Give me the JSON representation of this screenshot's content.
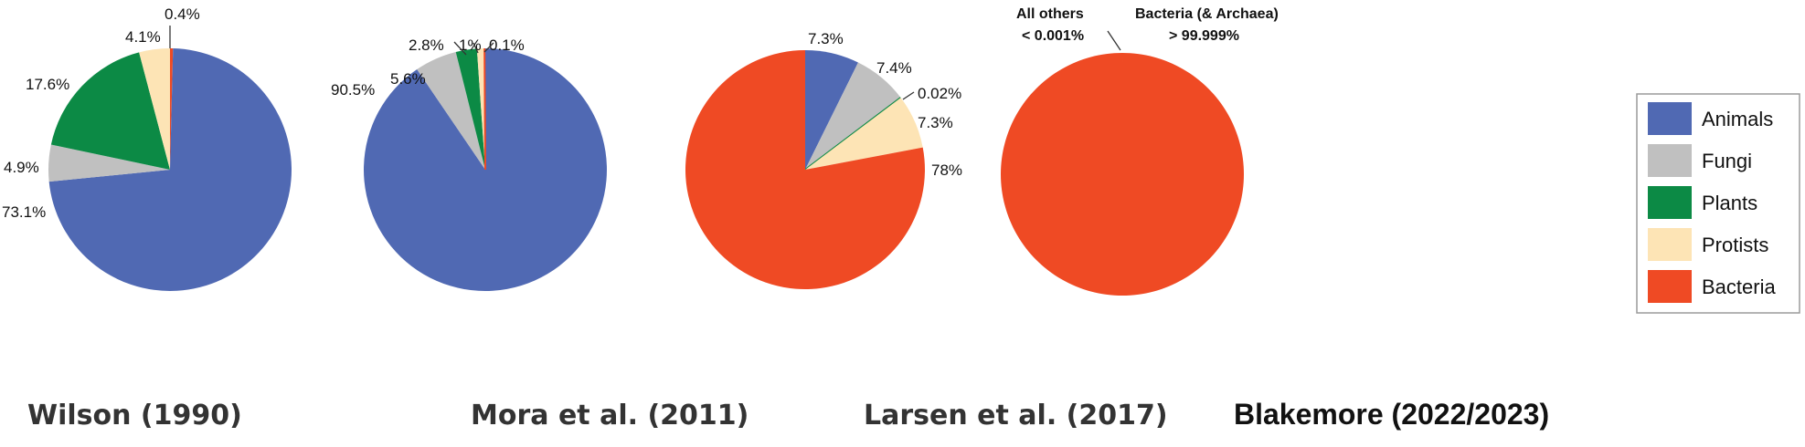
{
  "colors": {
    "Animals": "#5069b3",
    "Fungi": "#c0c0c0",
    "Plants": "#0c8a45",
    "Protists": "#fde4b5",
    "Bacteria": "#ef4a24"
  },
  "legend": [
    "Animals",
    "Fungi",
    "Plants",
    "Protists",
    "Bacteria"
  ],
  "chart_data": [
    {
      "type": "pie",
      "title": "Wilson (1990)",
      "slices": [
        {
          "category": "Animals",
          "value": 73.1,
          "label": "73.1%"
        },
        {
          "category": "Fungi",
          "value": 4.9,
          "label": "4.9%"
        },
        {
          "category": "Plants",
          "value": 17.6,
          "label": "17.6%"
        },
        {
          "category": "Protists",
          "value": 4.1,
          "label": "4.1%"
        },
        {
          "category": "Bacteria",
          "value": 0.4,
          "label": "0.4%"
        }
      ]
    },
    {
      "type": "pie",
      "title": "Mora et al. (2011)",
      "slices": [
        {
          "category": "Animals",
          "value": 90.5,
          "label": "90.5%"
        },
        {
          "category": "Fungi",
          "value": 5.6,
          "label": "5.6%"
        },
        {
          "category": "Plants",
          "value": 2.8,
          "label": "2.8%"
        },
        {
          "category": "Protists",
          "value": 1,
          "label": "1%"
        },
        {
          "category": "Bacteria",
          "value": 0.1,
          "label": "0.1%"
        }
      ]
    },
    {
      "type": "pie",
      "title": "Larsen et al. (2017)",
      "slices": [
        {
          "category": "Animals",
          "value": 7.3,
          "label": "7.3%"
        },
        {
          "category": "Fungi",
          "value": 7.4,
          "label": "7.4%"
        },
        {
          "category": "Plants",
          "value": 0.02,
          "label": "0.02%"
        },
        {
          "category": "Protists",
          "value": 7.3,
          "label": "7.3%"
        },
        {
          "category": "Bacteria",
          "value": 78,
          "label": "78%"
        }
      ]
    },
    {
      "type": "pie",
      "title": "Blakemore (2022/2023)",
      "slices": [
        {
          "category": "All others",
          "value": 0.001,
          "label": "All others\n< 0.001%"
        },
        {
          "category": "Bacteria",
          "value": 99.999,
          "label": "Bacteria (& Archaea)\n> 99.999%"
        }
      ]
    }
  ]
}
